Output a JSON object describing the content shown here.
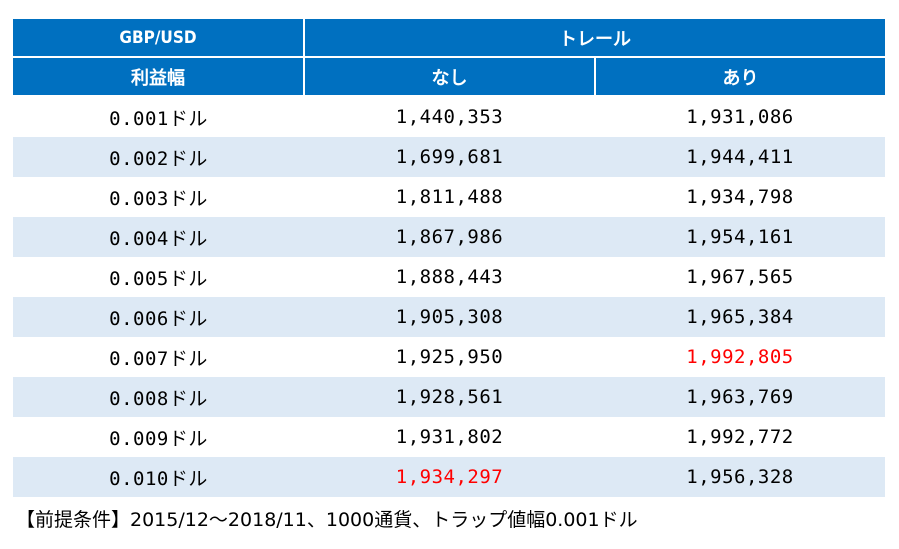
{
  "table": {
    "header_row1": {
      "pair": "GBP/USD",
      "trail": "トレール"
    },
    "header_row2": {
      "profit_width": "利益幅",
      "none": "なし",
      "with": "あり"
    },
    "rows": [
      {
        "width": "0.001ドル",
        "none": "1,440,353",
        "with": "1,931,086",
        "highlight": ""
      },
      {
        "width": "0.002ドル",
        "none": "1,699,681",
        "with": "1,944,411",
        "highlight": ""
      },
      {
        "width": "0.003ドル",
        "none": "1,811,488",
        "with": "1,934,798",
        "highlight": ""
      },
      {
        "width": "0.004ドル",
        "none": "1,867,986",
        "with": "1,954,161",
        "highlight": ""
      },
      {
        "width": "0.005ドル",
        "none": "1,888,443",
        "with": "1,967,565",
        "highlight": ""
      },
      {
        "width": "0.006ドル",
        "none": "1,905,308",
        "with": "1,965,384",
        "highlight": ""
      },
      {
        "width": "0.007ドル",
        "none": "1,925,950",
        "with": "1,992,805",
        "highlight": "with"
      },
      {
        "width": "0.008ドル",
        "none": "1,928,561",
        "with": "1,963,769",
        "highlight": ""
      },
      {
        "width": "0.009ドル",
        "none": "1,931,802",
        "with": "1,992,772",
        "highlight": ""
      },
      {
        "width": "0.010ドル",
        "none": "1,934,297",
        "with": "1,956,328",
        "highlight": "none"
      }
    ]
  },
  "footnote": "【前提条件】2015/12～2018/11、1000通貨、トラップ値幅0.001ドル",
  "colors": {
    "header_bg": "#0070c0",
    "header_text": "#ffffff",
    "stripe": "#dde9f5",
    "highlight_text": "#ff0000"
  }
}
